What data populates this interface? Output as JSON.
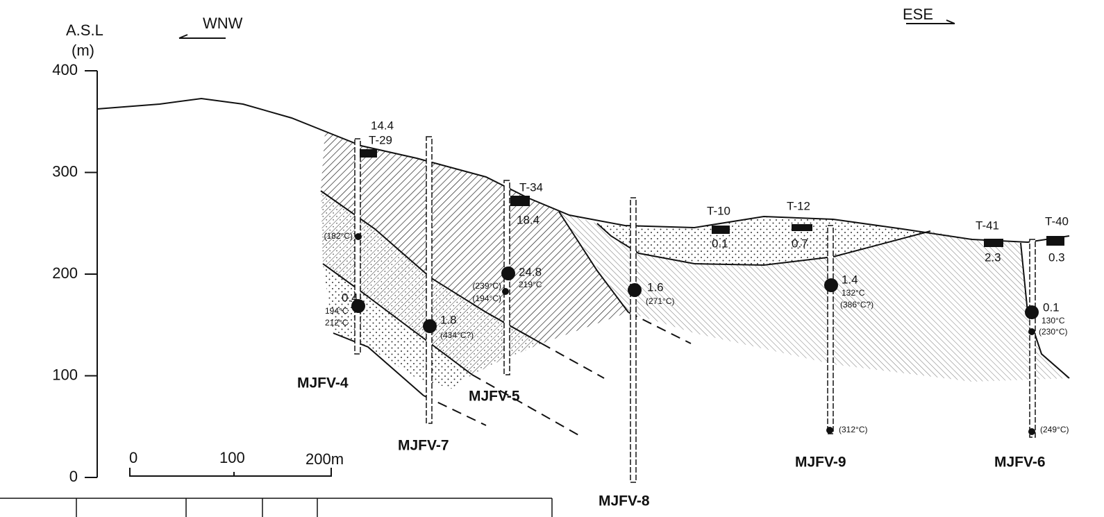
{
  "header": {
    "datum": "A.S.L",
    "unit": "(m)",
    "west": "WNW",
    "east": "ESE"
  },
  "axis": {
    "ylim": [
      0,
      400
    ],
    "yticks": [
      0,
      100,
      200,
      300,
      400
    ]
  },
  "scale_bar": {
    "labels": [
      "0",
      "100",
      "200m"
    ]
  },
  "trenches": [
    {
      "name": "T-29",
      "value": "14.4"
    },
    {
      "name": "T-34",
      "value": "18.4"
    },
    {
      "name": "T-10",
      "value": "0.1"
    },
    {
      "name": "T-12",
      "value": "0.7"
    },
    {
      "name": "T-41",
      "value": "2.3"
    },
    {
      "name": "T-40",
      "value": "0.3"
    }
  ],
  "wells": [
    {
      "name": "MJFV-4",
      "notes": [
        "(182°C)",
        "0.4",
        "194°C",
        "212°C"
      ]
    },
    {
      "name": "MJFV-7",
      "notes": [
        "1.8",
        "(434°C?)"
      ]
    },
    {
      "name": "MJFV-5",
      "notes": [
        "24.8",
        "219°C",
        "(239°C)",
        "(194°C)"
      ]
    },
    {
      "name": "MJFV-8",
      "notes": [
        "1.6",
        "(271°C)"
      ]
    },
    {
      "name": "MJFV-9",
      "notes": [
        "1.4",
        "132°C",
        "(386°C?)",
        "(312°C)"
      ]
    },
    {
      "name": "MJFV-6",
      "notes": [
        "0.1",
        "130°C",
        "(230°C)",
        "(249°C)"
      ]
    }
  ]
}
